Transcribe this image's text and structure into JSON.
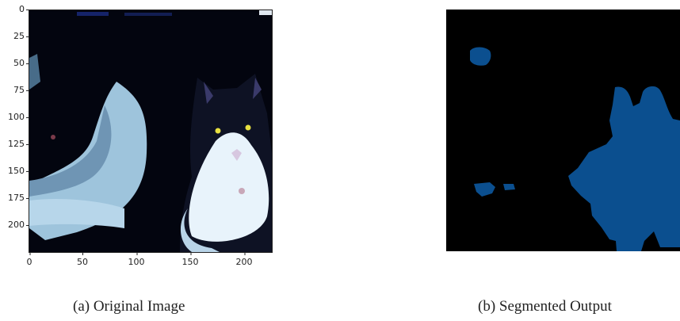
{
  "figure": {
    "left": {
      "caption": "(a) Original Image",
      "y_ticks": [
        "0",
        "25",
        "50",
        "75",
        "100",
        "125",
        "150",
        "175",
        "200"
      ],
      "x_ticks": [
        "0",
        "50",
        "100",
        "150",
        "200"
      ]
    },
    "right": {
      "caption": "(b) Segmented Output"
    }
  },
  "colors": {
    "background_dark": "#03050f",
    "segment_blue": "#0b4f8f"
  }
}
